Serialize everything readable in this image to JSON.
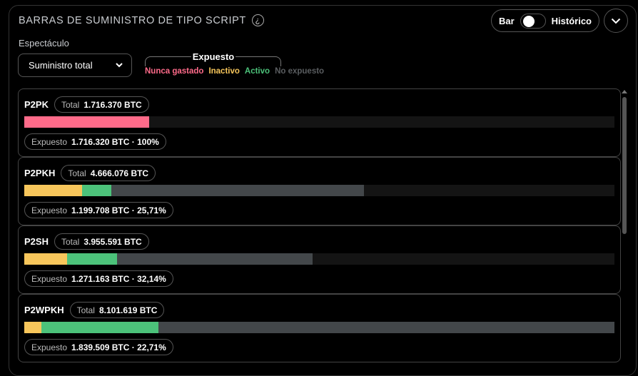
{
  "header": {
    "title": "BARRAS DE SUMINISTRO DE TIPO SCRIPT",
    "info_icon": "¿"
  },
  "controls": {
    "display_label": "Espectáculo",
    "display_select": "Suministro total",
    "legend_title": "Expuesto",
    "legend": [
      {
        "label": "Nunca gastado",
        "color": "#ff6b8a"
      },
      {
        "label": "Inactivo",
        "color": "#f7c65b"
      },
      {
        "label": "Activo",
        "color": "#4cc27a"
      },
      {
        "label": "No expuesto",
        "color": "#5a5d60"
      }
    ],
    "toggle_left": "Bar",
    "toggle_right": "Histórico",
    "toggle_on": false
  },
  "colors": {
    "never_spent": "#ff6b8a",
    "inactive": "#f7c65b",
    "active": "#4cc27a",
    "not_exposed": "#43474a",
    "track": "#141414"
  },
  "scale_max_btc": 8101619,
  "rows": [
    {
      "name": "P2PK",
      "total_label": "Total",
      "total": "1.716.370 BTC",
      "exposed_label": "Expuesto",
      "exposed": "1.716.320 BTC · 100%",
      "segments": [
        {
          "type": "never_spent",
          "btc": 1716370
        }
      ]
    },
    {
      "name": "P2PKH",
      "total_label": "Total",
      "total": "4.666.076 BTC",
      "exposed_label": "Expuesto",
      "exposed": "1.199.708 BTC · 25,71%",
      "segments": [
        {
          "type": "inactive",
          "btc": 793000
        },
        {
          "type": "active",
          "btc": 407000
        },
        {
          "type": "not_exposed",
          "btc": 3466000
        }
      ]
    },
    {
      "name": "P2SH",
      "total_label": "Total",
      "total": "3.955.591 BTC",
      "exposed_label": "Expuesto",
      "exposed": "1.271.163 BTC · 32,14%",
      "segments": [
        {
          "type": "inactive",
          "btc": 588000
        },
        {
          "type": "active",
          "btc": 683000
        },
        {
          "type": "not_exposed",
          "btc": 2684000
        }
      ]
    },
    {
      "name": "P2WPKH",
      "total_label": "Total",
      "total": "8.101.619 BTC",
      "exposed_label": "Expuesto",
      "exposed": "1.839.509 BTC · 22,71%",
      "segments": [
        {
          "type": "inactive",
          "btc": 235000
        },
        {
          "type": "active",
          "btc": 1605000
        },
        {
          "type": "not_exposed",
          "btc": 6261000
        }
      ]
    }
  ]
}
